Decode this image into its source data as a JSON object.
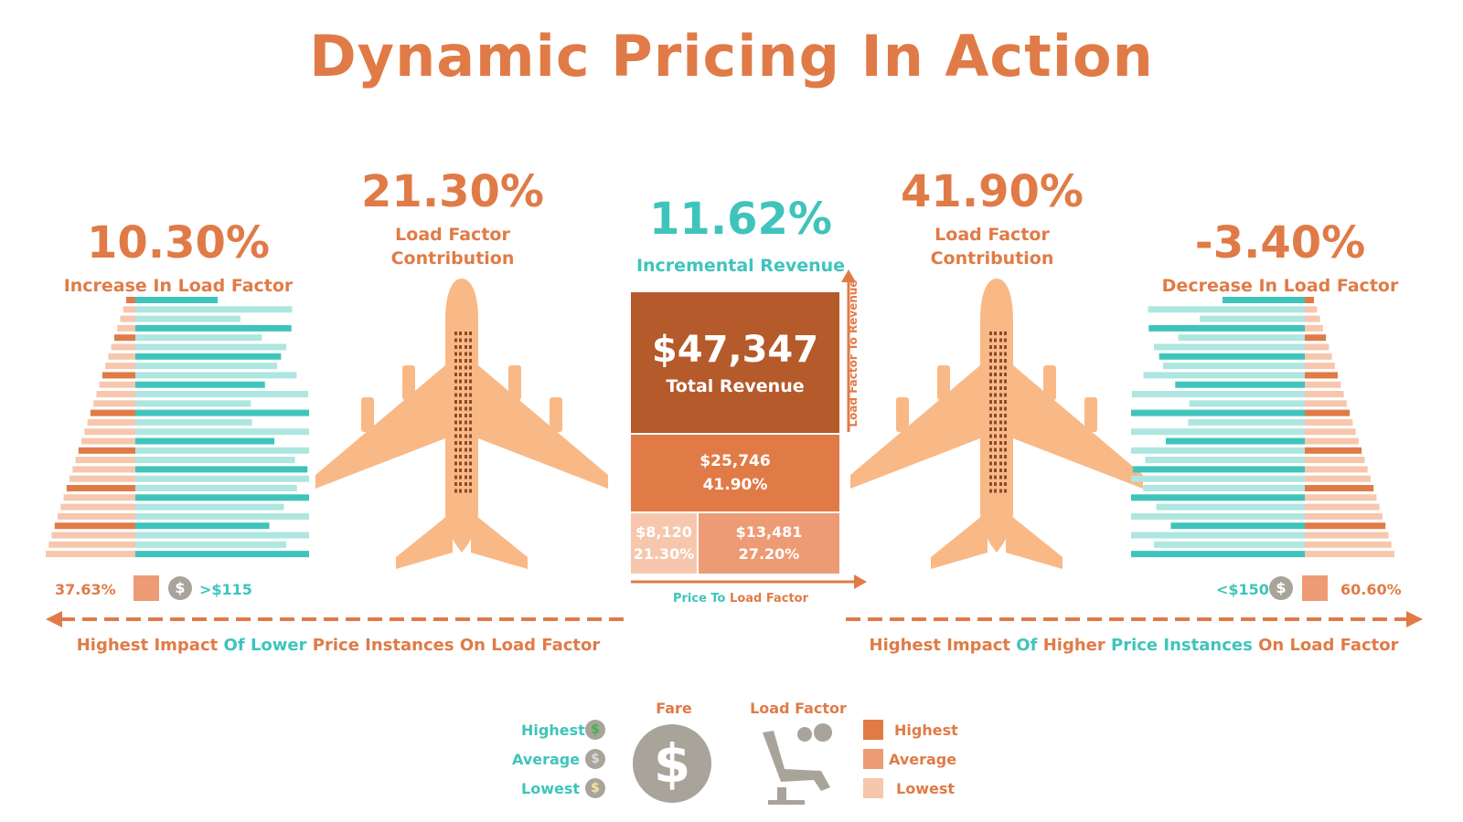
{
  "title": "Dynamic Pricing In Action",
  "left": {
    "pct": "10.30%",
    "pct_label": "Increase In Load Factor",
    "contribution_pct": "21.30%",
    "contribution_label_1": "Load Factor",
    "contribution_label_2": "Contribution",
    "footer_pct": "37.63%",
    "footer_price": ">$115",
    "impact_words": [
      "Highest Impact",
      "Of",
      "Lower",
      "Price Instances On Load Factor"
    ]
  },
  "right": {
    "pct": "-3.40%",
    "pct_label": "Decrease In Load Factor",
    "contribution_pct": "41.90%",
    "contribution_label_1": "Load Factor",
    "contribution_label_2": "Contribution",
    "footer_pct": "60.60%",
    "footer_price": "<$150",
    "impact_words": [
      "Highest Impact",
      "Of",
      "Higher",
      "Price Instances",
      "On Load Factor"
    ]
  },
  "center": {
    "incremental_pct": "11.62%",
    "incremental_label": "Incremental Revenue",
    "total_value": "$47,347",
    "total_label": "Total Revenue",
    "mid_value": "$25,746",
    "mid_pct": "41.90%",
    "bl_value": "$8,120",
    "bl_pct": "21.30%",
    "br_value": "$13,481",
    "br_pct": "27.20%",
    "y_axis_label": "Load Factor To Revenue",
    "x_axis_label_1": "Price To",
    "x_axis_label_2": "Load Factor"
  },
  "legend": {
    "fare_title": "Fare",
    "load_title": "Load Factor",
    "fare_items": [
      "Highest",
      "Average",
      "Lowest"
    ],
    "load_items": [
      "Highest",
      "Average",
      "Lowest"
    ]
  },
  "colors": {
    "orange": "#e07b47",
    "dark_orange": "#b55a2b",
    "light_orange": "#f9c49a",
    "teal": "#3fc4bc",
    "light_teal": "#aee6e0",
    "gray": "#a8a49a"
  }
}
